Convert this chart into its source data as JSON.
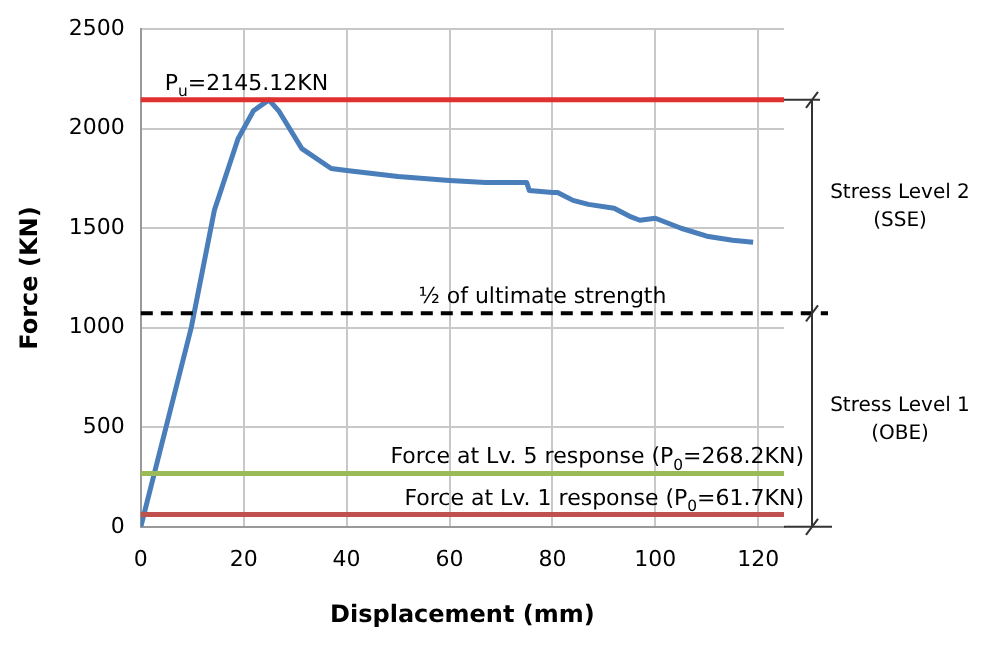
{
  "chart_data": {
    "type": "line",
    "xlabel": "Displacement (mm)",
    "ylabel": "Force (KN)",
    "x": [
      0,
      9.8,
      14.3,
      18.9,
      21.9,
      24.9,
      26.8,
      31.3,
      37,
      40,
      50,
      60,
      67,
      75,
      75.5,
      80,
      81,
      84,
      87,
      92,
      95,
      97,
      100,
      105,
      110,
      115,
      119
    ],
    "series": [
      {
        "color": "#4a7ebb",
        "values": [
          0,
          1000,
          1590,
          1950,
          2090,
          2145,
          2090,
          1900,
          1800,
          1790,
          1760,
          1740,
          1730,
          1730,
          1690,
          1680,
          1680,
          1640,
          1620,
          1600,
          1560,
          1540,
          1550,
          1500,
          1460,
          1440,
          1430
        ]
      }
    ],
    "xlim": [
      0,
      125
    ],
    "xticks": [
      0,
      20,
      40,
      60,
      80,
      100,
      120
    ],
    "ylim": [
      0,
      2500
    ],
    "yticks": [
      0,
      500,
      1000,
      1500,
      2000,
      2500
    ],
    "grid": true,
    "marker": "none",
    "line_style": "solid",
    "ref_lines": [
      {
        "axis": "y",
        "value": 2145.12,
        "label": "P$_{u}$=2145.12KN",
        "color": "#e03030",
        "line_style": "solid"
      },
      {
        "axis": "y",
        "value": 1072.56,
        "label": "½ of ultimate strength",
        "color": "#000000",
        "line_style": "dashed"
      },
      {
        "axis": "y",
        "value": 268.2,
        "label": "Force at Lv. 5 response (P$_{0}$=268.2KN)",
        "color": "#9bbb59",
        "line_style": "solid"
      },
      {
        "axis": "y",
        "value": 61.7,
        "label": "Force at Lv. 1 response (P$_{0}$=61.7KN)",
        "color": "#c0504d",
        "line_style": "solid"
      }
    ],
    "annotations": [
      "Stress Level 2\n(SSE)",
      "Stress Level 1\n(OBE)"
    ]
  }
}
